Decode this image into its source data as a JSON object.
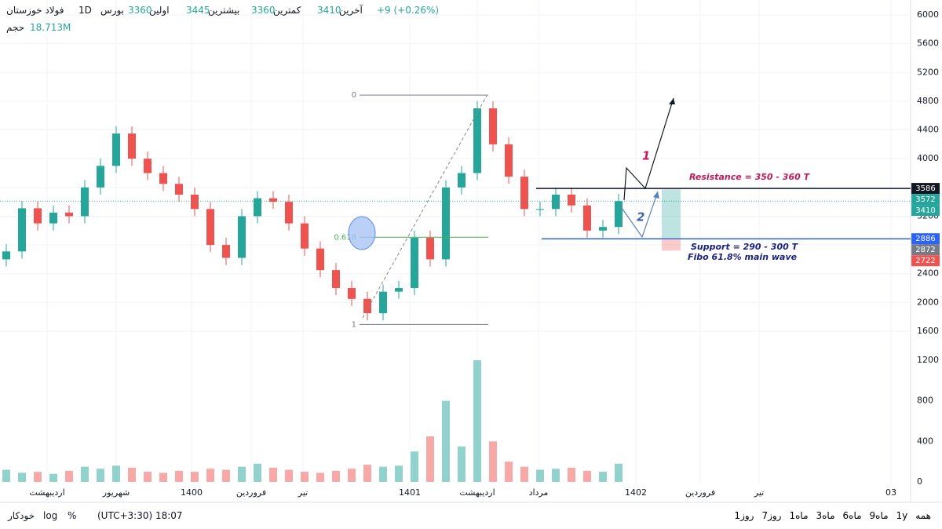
{
  "chart_data": {
    "type": "candlestick",
    "header": {
      "symbol": "فولاد خوزستان",
      "interval": "1D",
      "exchange": "بورس",
      "open_label": "اولین",
      "open": 3360,
      "high_label": "بیشترین",
      "high": 3445,
      "low_label": "کمترین",
      "low": 3360,
      "last_label": "آخرین",
      "last": 3410,
      "change": "+9 (+0.26%)",
      "volume_label": "حجم",
      "volume": "18.713M"
    },
    "open": [
      2600,
      2710,
      3310,
      3100,
      3250,
      3200,
      3600,
      3900,
      4350,
      4000,
      3800,
      3650,
      3500,
      3300,
      2800,
      2620,
      3200,
      3450,
      3400,
      3100,
      2750,
      2450,
      2200,
      2050,
      1850,
      2150,
      2200,
      2900,
      2600,
      3600,
      3800,
      4700,
      4200,
      3750,
      3300,
      3300,
      3500,
      3350,
      3000,
      3050
    ],
    "high": [
      2810,
      3410,
      3410,
      3350,
      3350,
      3700,
      4000,
      4450,
      4450,
      4100,
      3900,
      3750,
      3600,
      3400,
      2900,
      3300,
      3550,
      3550,
      3500,
      3200,
      2850,
      2550,
      2300,
      2150,
      2250,
      2300,
      3000,
      3000,
      3700,
      3900,
      4800,
      4800,
      4300,
      3850,
      3400,
      3600,
      3600,
      3450,
      3150,
      3510
    ],
    "low": [
      2500,
      2610,
      3000,
      3000,
      3100,
      3100,
      3500,
      3800,
      3900,
      3700,
      3550,
      3400,
      3200,
      2700,
      2520,
      2520,
      3100,
      3300,
      3000,
      2650,
      2350,
      2100,
      1950,
      1750,
      1750,
      2050,
      2100,
      2500,
      2500,
      3500,
      3700,
      4100,
      3650,
      3200,
      3200,
      3200,
      3250,
      2900,
      2900,
      2950
    ],
    "close": [
      2710,
      3310,
      3100,
      3250,
      3200,
      3600,
      3900,
      4350,
      4000,
      3800,
      3650,
      3500,
      3300,
      2800,
      2620,
      3200,
      3450,
      3400,
      3100,
      2750,
      2450,
      2200,
      2050,
      1850,
      2150,
      2200,
      2900,
      2600,
      3600,
      3800,
      4700,
      4200,
      3750,
      3300,
      3300,
      3500,
      3350,
      3000,
      3050,
      3410
    ],
    "volume": [
      120,
      90,
      100,
      80,
      110,
      150,
      130,
      160,
      140,
      100,
      90,
      110,
      100,
      130,
      120,
      150,
      180,
      140,
      120,
      100,
      90,
      110,
      130,
      170,
      150,
      160,
      300,
      450,
      800,
      350,
      1200,
      400,
      200,
      150,
      120,
      130,
      140,
      110,
      100,
      180
    ],
    "up_color": "#26a69a",
    "down_color": "#ef5350",
    "ylim": [
      1600,
      6000
    ],
    "yticks": [
      1600,
      2000,
      2400,
      2800,
      3200,
      3600,
      4000,
      4400,
      4800,
      5200,
      5600,
      6000
    ],
    "vlim": [
      0,
      1200
    ],
    "vticks": [
      0,
      400,
      800,
      1200
    ],
    "xticks": [
      {
        "value": 2.6,
        "label": "اردیبهشت"
      },
      {
        "value": 7,
        "label": "شهریور"
      },
      {
        "value": 11.8,
        "label": "1400"
      },
      {
        "value": 15.6,
        "label": "فروردین"
      },
      {
        "value": 18.9,
        "label": "تیر"
      },
      {
        "value": 25.7,
        "label": "1401"
      },
      {
        "value": 30,
        "label": "اردیبهشت"
      },
      {
        "value": 33.9,
        "label": "مرداد"
      },
      {
        "value": 40.1,
        "label": "1402"
      },
      {
        "value": 44.2,
        "label": "فروردین"
      },
      {
        "value": 47.95,
        "label": "تیر"
      },
      {
        "value": 56.35,
        "label": "03"
      }
    ],
    "price_labels": [
      {
        "value": 3586,
        "color": "#131722"
      },
      {
        "value": 3572,
        "color": "#26a69a"
      },
      {
        "value": 3410,
        "color": "#26a69a"
      },
      {
        "value": 2886,
        "color": "#2962ff"
      },
      {
        "value": 2872,
        "color": "#787b86"
      },
      {
        "value": 2722,
        "color": "#ef5350"
      }
    ],
    "fib": [
      {
        "level": 0,
        "price": 4885
      },
      {
        "level": 0.618,
        "price": 2907
      },
      {
        "level": 1,
        "price": 1694
      }
    ],
    "annotations": {
      "resistance": "Resistance = 350 - 360 T",
      "support": "Support = 290 - 300 T",
      "fibo": "Fibo 61.8% main wave",
      "path1": "1",
      "path2": "2"
    },
    "toolbar": {
      "auto": "خودکار",
      "log": "log",
      "percent": "%",
      "time": "(UTC+3:30) 18:07",
      "ranges": [
        "همه",
        "1y",
        "9ماه",
        "6ماه",
        "3ماه",
        "1ماه",
        "7روز",
        "1روز"
      ]
    }
  }
}
